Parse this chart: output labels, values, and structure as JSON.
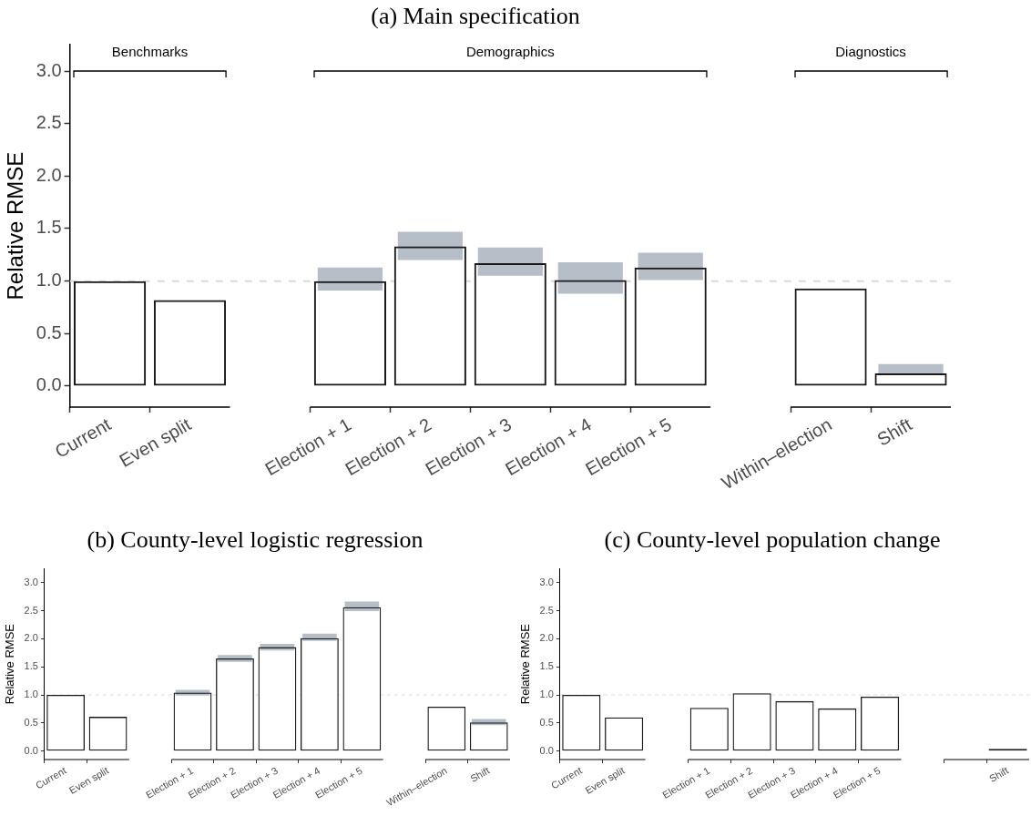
{
  "chart_data": [
    {
      "type": "bar",
      "title": "(a) Main specification",
      "ylabel": "Relative RMSE",
      "categories": [
        "Current",
        "Even split",
        null,
        "Election + 1",
        "Election + 2",
        "Election + 3",
        "Election + 4",
        "Election + 5",
        null,
        "Within–election",
        "Shift"
      ],
      "series": [
        {
          "color": "#1a1a1a",
          "values": [
            1.0,
            0.82,
            null,
            1.0,
            1.33,
            1.17,
            1.01,
            1.13,
            null,
            0.93,
            0.12
          ]
        },
        {
          "color": "#b6bec7",
          "base": [
            null,
            null,
            null,
            0.91,
            1.2,
            1.05,
            0.88,
            1.01,
            null,
            null,
            0.12
          ],
          "values": [
            null,
            null,
            null,
            0.22,
            0.27,
            0.27,
            0.3,
            0.26,
            null,
            null,
            0.09
          ]
        }
      ],
      "ylim": [
        -0.2,
        3.25
      ],
      "yticks": [
        {
          "value": 0,
          "label": "0.0"
        },
        {
          "value": 0.5,
          "label": "0.5"
        },
        {
          "value": 1,
          "label": "1.0"
        },
        {
          "value": 1.5,
          "label": "1.5"
        },
        {
          "value": 2,
          "label": "2.0"
        },
        {
          "value": 2.5,
          "label": "2.5"
        },
        {
          "value": 3,
          "label": "3.0"
        }
      ],
      "ref_lines": [
        {
          "axis": "y",
          "value": 1,
          "color": "#d9d9d9",
          "line_style": "dashed"
        }
      ],
      "annotations": [
        "Benchmarks",
        "Demographics",
        "Diagnostics"
      ]
    },
    {
      "type": "bar",
      "title": "(b) County-level logistic regression",
      "ylabel": "Relative RMSE",
      "categories": [
        "Current",
        "Even split",
        null,
        "Election + 1",
        "Election + 2",
        "Election + 3",
        "Election + 4",
        "Election + 5",
        null,
        "Within–election",
        "Shift"
      ],
      "series": [
        {
          "color": "#1a1a1a",
          "values": [
            1.0,
            0.61,
            null,
            1.04,
            1.65,
            1.85,
            2.01,
            2.56,
            null,
            0.79,
            0.51
          ]
        },
        {
          "color": "#b6bec7",
          "base": [
            null,
            null,
            null,
            0.99,
            1.59,
            1.79,
            1.96,
            2.49,
            null,
            null,
            0.46
          ],
          "values": [
            null,
            null,
            null,
            0.1,
            0.12,
            0.12,
            0.13,
            0.17,
            null,
            null,
            0.11
          ]
        }
      ],
      "ylim": [
        -0.15,
        3.25
      ],
      "yticks": [
        {
          "value": 0,
          "label": "0.0"
        },
        {
          "value": 0.5,
          "label": "0.5"
        },
        {
          "value": 1,
          "label": "1.0"
        },
        {
          "value": 1.5,
          "label": "1.5"
        },
        {
          "value": 2,
          "label": "2.0"
        },
        {
          "value": 2.5,
          "label": "2.5"
        },
        {
          "value": 3,
          "label": "3.0"
        }
      ],
      "ref_lines": [
        {
          "axis": "y",
          "value": 1,
          "color": "#d9d9d9",
          "line_style": "dashed"
        }
      ]
    },
    {
      "type": "bar",
      "title": "(c) County-level population change",
      "ylabel": "Relative RMSE",
      "categories": [
        "Current",
        "Even split",
        null,
        "Election + 1",
        "Election + 2",
        "Election + 3",
        "Election + 4",
        "Election + 5",
        null,
        null,
        "Shift"
      ],
      "series": [
        {
          "color": "#1a1a1a",
          "values": [
            1.0,
            0.6,
            null,
            0.77,
            1.03,
            0.89,
            0.76,
            0.97,
            null,
            0.0,
            0.04
          ]
        }
      ],
      "ylim": [
        -0.15,
        3.25
      ],
      "yticks": [
        {
          "value": 0,
          "label": "0.0"
        },
        {
          "value": 0.5,
          "label": "0.5"
        },
        {
          "value": 1,
          "label": "1.0"
        },
        {
          "value": 1.5,
          "label": "1.5"
        },
        {
          "value": 2,
          "label": "2.0"
        },
        {
          "value": 2.5,
          "label": "2.5"
        },
        {
          "value": 3,
          "label": "3.0"
        }
      ],
      "ref_lines": [
        {
          "axis": "y",
          "value": 1,
          "color": "#d9d9d9",
          "line_style": "dashed"
        }
      ]
    }
  ]
}
